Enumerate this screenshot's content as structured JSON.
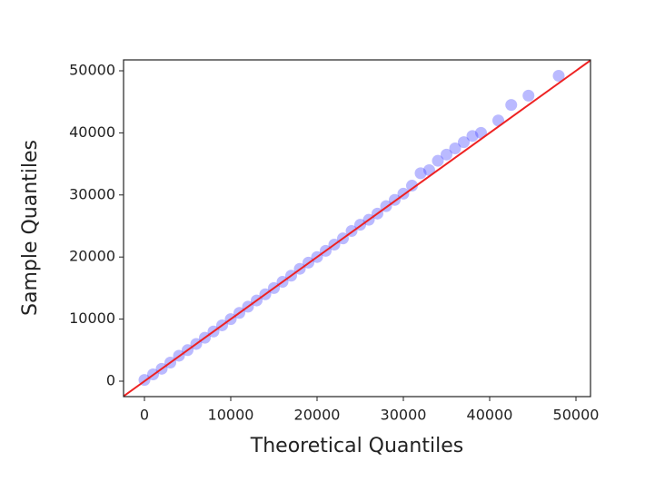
{
  "chart_data": {
    "type": "scatter",
    "xlabel": "Theoretical Quantiles",
    "ylabel": "Sample Quantiles",
    "x": [
      0,
      1000,
      2000,
      3000,
      4000,
      5000,
      6000,
      7000,
      8000,
      9000,
      10000,
      11000,
      12000,
      13000,
      14000,
      15000,
      16000,
      17000,
      18000,
      19000,
      20000,
      21000,
      22000,
      23000,
      24000,
      25000,
      26000,
      27000,
      28000,
      29000,
      30000,
      31000,
      32000,
      33000,
      34000,
      35000,
      36000,
      37000,
      38000,
      39000,
      41000,
      42500,
      44500,
      48000
    ],
    "y": [
      200,
      1100,
      2000,
      3000,
      4100,
      5000,
      6000,
      7000,
      8000,
      9000,
      10000,
      11000,
      12000,
      13000,
      14000,
      15000,
      16000,
      17000,
      18100,
      19100,
      20000,
      21000,
      22000,
      23000,
      24200,
      25200,
      26000,
      27000,
      28200,
      29200,
      30200,
      31500,
      33500,
      34000,
      35500,
      36500,
      37500,
      38500,
      39500,
      40000,
      42000,
      44500,
      46000,
      49200
    ],
    "color": "#3a3aff",
    "line_color": "#ee2222",
    "xlim": [
      -2421,
      51684
    ],
    "ylim": [
      -2485,
      51754
    ],
    "xticks": [
      0,
      10000,
      20000,
      30000,
      40000,
      50000
    ],
    "yticks": [
      0,
      10000,
      20000,
      30000,
      40000,
      50000
    ]
  }
}
